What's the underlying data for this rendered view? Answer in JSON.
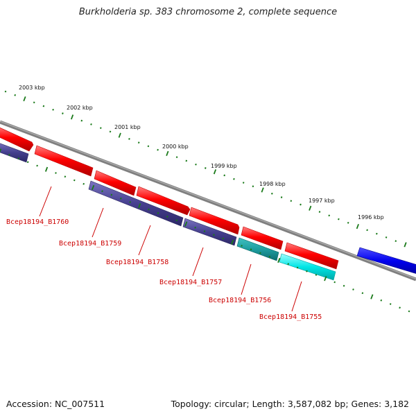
{
  "title": "Burkholderia sp. 383 chromosome 2, complete sequence",
  "footer": {
    "accession": "Accession: NC_007511",
    "summary": "Topology: circular; Length: 3,587,082 bp; Genes: 3,182"
  },
  "scale_labels": [
    "2003 kbp",
    "2002 kbp",
    "2001 kbp",
    "2000 kbp",
    "1999 kbp",
    "1998 kbp",
    "1997 kbp",
    "1996 kbp"
  ],
  "gene_labels": [
    "Bcep18194_B1760",
    "Bcep18194_B1759",
    "Bcep18194_B1758",
    "Bcep18194_B1757",
    "Bcep18194_B1756",
    "Bcep18194_B1755"
  ],
  "colors": {
    "backbone": "#808080",
    "forward_cds": "#ff0000",
    "reverse_cds": "#46408f",
    "reverse_cds_alt": "#00e0e0",
    "other_feature": "#0000ee",
    "tick": "#1a7a1a",
    "label": "#cc0000"
  }
}
